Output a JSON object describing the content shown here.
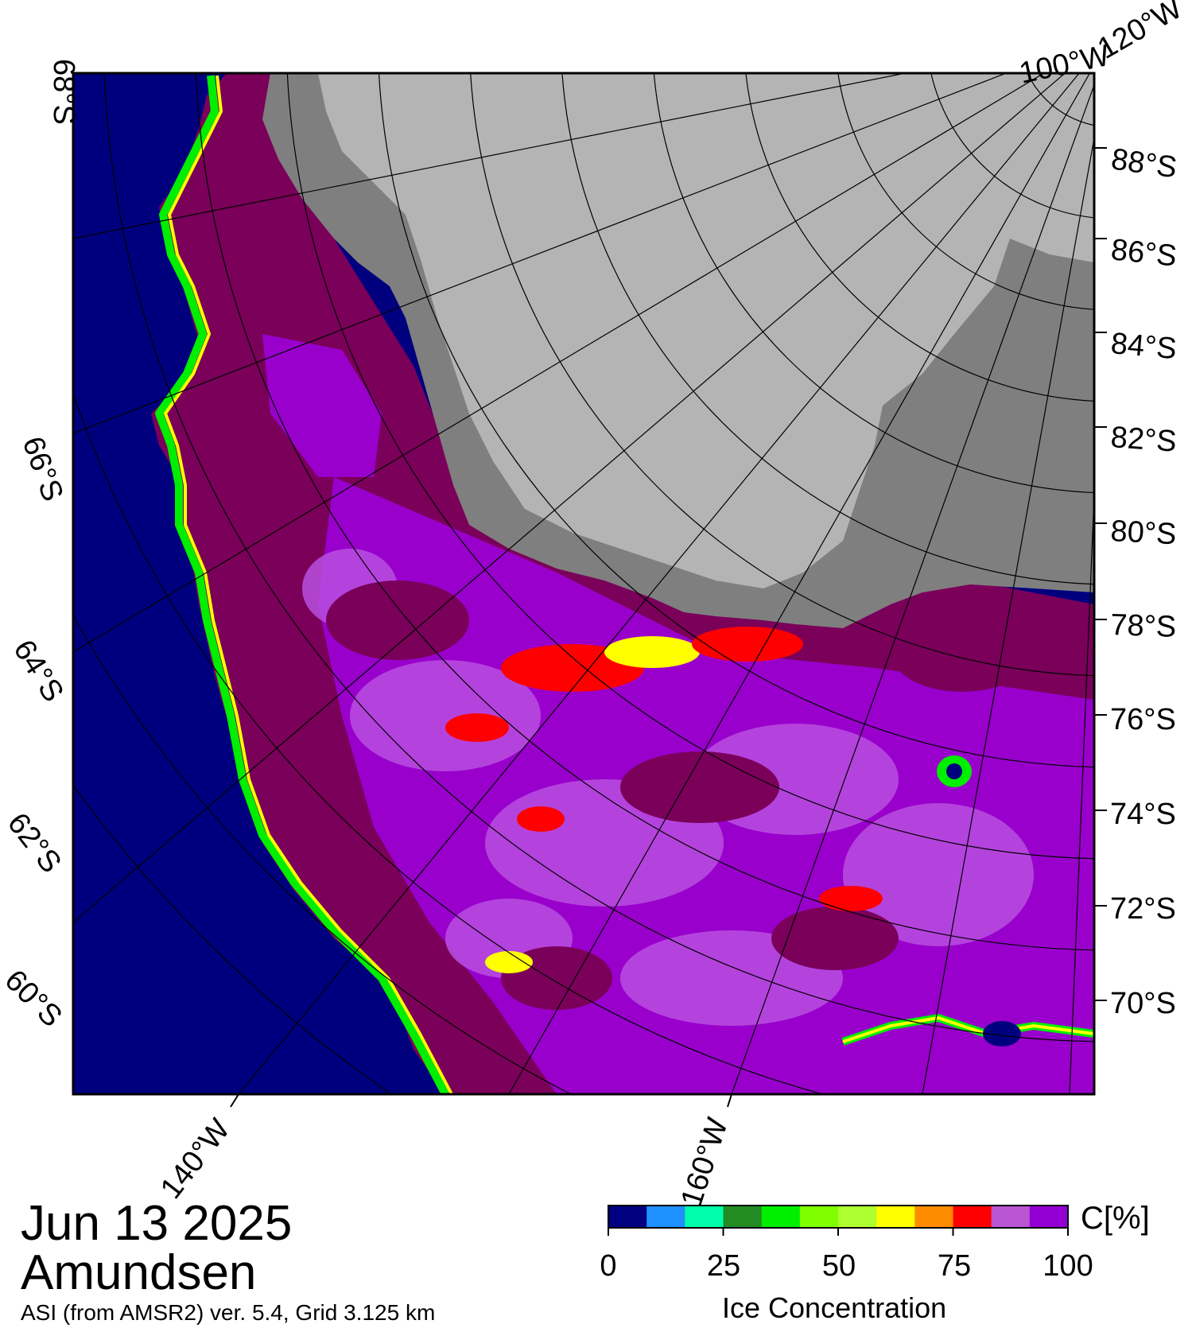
{
  "map": {
    "date": "Jun 13 2025",
    "region": "Amundsen",
    "product": "ASI (from AMSR2) ver. 5.4,  Grid 3.125 km",
    "lat_labels_right": [
      "88°S",
      "86°S",
      "84°S",
      "82°S",
      "80°S",
      "78°S",
      "76°S",
      "74°S",
      "72°S",
      "70°S"
    ],
    "lat_labels_left": [
      "68°S",
      "66°S",
      "64°S",
      "62°S",
      "60°S"
    ],
    "lon_labels_bottom": [
      "140°W",
      "160°W"
    ],
    "lon_labels_top": [
      "100°W",
      "120°W"
    ],
    "colors": {
      "open_water": "#00007f",
      "land_ice": "#b4b4b4",
      "land_dark": "#7f7f7f",
      "ice_high": "#7a005a",
      "ice_mid": "#9900cc",
      "ice_light": "#b94fe0"
    }
  },
  "colorbar": {
    "title": "Ice Concentration",
    "unit": "C[%]",
    "ticks": [
      "0",
      "25",
      "50",
      "75",
      "100"
    ],
    "bins": [
      "#000080",
      "#1e90ff",
      "#00ffaa",
      "#228b22",
      "#00ee00",
      "#7fff00",
      "#adff2f",
      "#ffff00",
      "#ff8c00",
      "#ff0000",
      "#ba55d3",
      "#9400d3"
    ]
  }
}
